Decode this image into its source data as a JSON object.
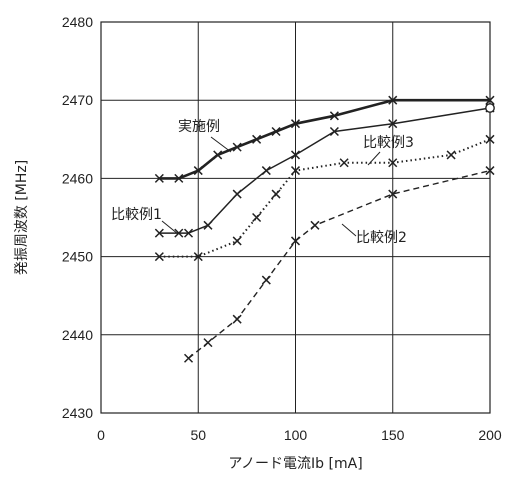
{
  "chart_data": {
    "type": "line",
    "xlabel": "アノード電流Ib [mA]",
    "ylabel": "発振周波数 [MHz]",
    "xlim": [
      0,
      200
    ],
    "ylim": [
      2430,
      2480
    ],
    "xticks": [
      0,
      50,
      100,
      150,
      200
    ],
    "yticks": [
      2430,
      2440,
      2450,
      2460,
      2470,
      2480
    ],
    "grid": true,
    "series": [
      {
        "name": "実施例",
        "style": "solid-bold",
        "points": [
          [
            30,
            2460
          ],
          [
            40,
            2460
          ],
          [
            50,
            2461
          ],
          [
            60,
            2463
          ],
          [
            70,
            2464
          ],
          [
            80,
            2465
          ],
          [
            90,
            2466
          ],
          [
            100,
            2467
          ],
          [
            120,
            2468
          ],
          [
            150,
            2470
          ],
          [
            200,
            2470
          ]
        ]
      },
      {
        "name": "比較例1",
        "style": "solid",
        "points": [
          [
            30,
            2453
          ],
          [
            40,
            2453
          ],
          [
            45,
            2453
          ],
          [
            55,
            2454
          ],
          [
            70,
            2458
          ],
          [
            85,
            2461
          ],
          [
            100,
            2463
          ],
          [
            120,
            2466
          ],
          [
            150,
            2467
          ],
          [
            200,
            2469
          ]
        ]
      },
      {
        "name": "比較例2",
        "style": "dashed",
        "points": [
          [
            45,
            2437
          ],
          [
            55,
            2439
          ],
          [
            70,
            2442
          ],
          [
            85,
            2447
          ],
          [
            100,
            2452
          ],
          [
            110,
            2454
          ],
          [
            150,
            2458
          ],
          [
            200,
            2461
          ]
        ]
      },
      {
        "name": "比較例3",
        "style": "dotted",
        "points": [
          [
            30,
            2450
          ],
          [
            50,
            2450
          ],
          [
            70,
            2452
          ],
          [
            80,
            2455
          ],
          [
            90,
            2458
          ],
          [
            100,
            2461
          ],
          [
            125,
            2462
          ],
          [
            150,
            2462
          ],
          [
            180,
            2463
          ],
          [
            200,
            2465
          ]
        ]
      }
    ],
    "annotations": [
      {
        "text": "実施例",
        "series": 0
      },
      {
        "text": "比較例1",
        "series": 1
      },
      {
        "text": "比較例2",
        "series": 2
      },
      {
        "text": "比較例3",
        "series": 3
      }
    ]
  }
}
